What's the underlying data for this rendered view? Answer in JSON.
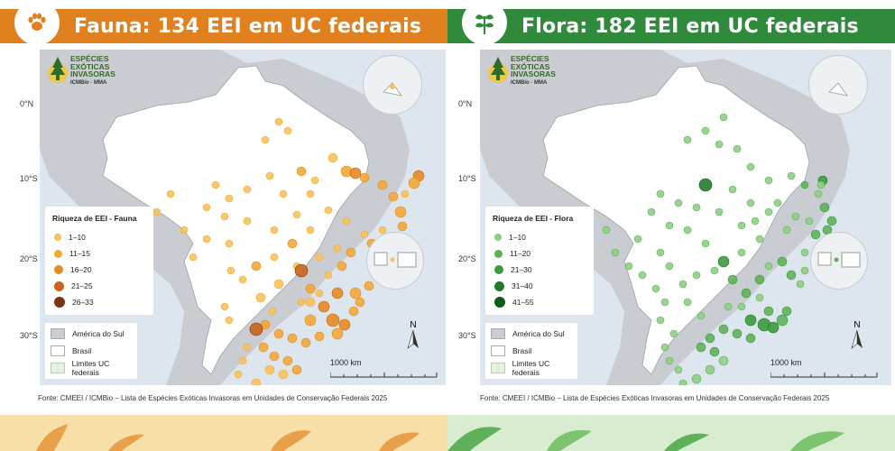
{
  "panels": [
    {
      "id": "fauna",
      "title": "Fauna: 134 EEI em UC federais",
      "icon": "paw-icon",
      "accent": "#e0801f",
      "legend_title": "Riqueza de EEI - Fauna",
      "legend": [
        {
          "label": "1–10",
          "color": "#f6c25c"
        },
        {
          "label": "11–15",
          "color": "#f2a93a"
        },
        {
          "label": "16–20",
          "color": "#e58a20"
        },
        {
          "label": "21–25",
          "color": "#c9651a"
        },
        {
          "label": "26–33",
          "color": "#7a3412"
        }
      ],
      "points": [
        [
          290,
          135,
          5,
          2
        ],
        [
          300,
          160,
          4,
          1
        ],
        [
          325,
          120,
          5,
          1
        ],
        [
          340,
          135,
          6,
          2
        ],
        [
          350,
          137,
          6,
          3
        ],
        [
          360,
          142,
          5,
          2
        ],
        [
          380,
          150,
          5,
          2
        ],
        [
          392,
          163,
          5,
          2
        ],
        [
          400,
          180,
          6,
          2
        ],
        [
          402,
          196,
          5,
          2
        ],
        [
          395,
          210,
          5,
          2
        ],
        [
          380,
          200,
          4,
          1
        ],
        [
          305,
          145,
          4,
          1
        ],
        [
          270,
          160,
          4,
          1
        ],
        [
          285,
          183,
          4,
          1
        ],
        [
          255,
          140,
          4,
          1
        ],
        [
          230,
          155,
          4,
          1
        ],
        [
          210,
          165,
          4,
          1
        ],
        [
          195,
          150,
          4,
          1
        ],
        [
          185,
          175,
          4,
          1
        ],
        [
          205,
          185,
          4,
          1
        ],
        [
          230,
          190,
          4,
          1
        ],
        [
          260,
          200,
          4,
          1
        ],
        [
          280,
          215,
          5,
          2
        ],
        [
          300,
          200,
          4,
          1
        ],
        [
          320,
          178,
          4,
          1
        ],
        [
          340,
          190,
          4,
          1
        ],
        [
          360,
          205,
          4,
          1
        ],
        [
          330,
          220,
          4,
          1
        ],
        [
          310,
          230,
          4,
          1
        ],
        [
          285,
          240,
          4,
          1
        ],
        [
          260,
          230,
          4,
          1
        ],
        [
          240,
          240,
          5,
          2
        ],
        [
          225,
          255,
          4,
          1
        ],
        [
          212,
          245,
          4,
          1
        ],
        [
          290,
          245,
          7,
          4
        ],
        [
          300,
          265,
          5,
          2
        ],
        [
          320,
          250,
          4,
          1
        ],
        [
          335,
          240,
          5,
          2
        ],
        [
          345,
          225,
          5,
          2
        ],
        [
          368,
          215,
          5,
          2
        ],
        [
          385,
          232,
          6,
          2
        ],
        [
          380,
          250,
          5,
          2
        ],
        [
          365,
          262,
          5,
          2
        ],
        [
          350,
          270,
          6,
          2
        ],
        [
          330,
          270,
          6,
          3
        ],
        [
          315,
          285,
          6,
          3
        ],
        [
          300,
          300,
          6,
          2
        ],
        [
          325,
          300,
          7,
          3
        ],
        [
          338,
          305,
          6,
          3
        ],
        [
          348,
          290,
          5,
          2
        ],
        [
          355,
          280,
          5,
          2
        ],
        [
          330,
          315,
          6,
          2
        ],
        [
          310,
          318,
          5,
          2
        ],
        [
          295,
          325,
          5,
          2
        ],
        [
          280,
          320,
          5,
          2
        ],
        [
          265,
          315,
          5,
          2
        ],
        [
          250,
          305,
          5,
          2
        ],
        [
          240,
          310,
          7,
          4
        ],
        [
          248,
          330,
          5,
          2
        ],
        [
          260,
          340,
          5,
          2
        ],
        [
          275,
          345,
          5,
          2
        ],
        [
          285,
          355,
          5,
          2
        ],
        [
          270,
          360,
          5,
          1
        ],
        [
          255,
          355,
          5,
          1
        ],
        [
          240,
          370,
          5,
          1
        ],
        [
          235,
          392,
          4,
          1
        ],
        [
          220,
          360,
          4,
          1
        ],
        [
          225,
          345,
          4,
          1
        ],
        [
          230,
          330,
          4,
          1
        ],
        [
          210,
          300,
          4,
          1
        ],
        [
          205,
          285,
          4,
          1
        ],
        [
          300,
          280,
          5,
          1
        ],
        [
          265,
          260,
          5,
          1
        ],
        [
          245,
          275,
          5,
          1
        ],
        [
          258,
          290,
          4,
          1
        ],
        [
          290,
          280,
          4,
          1
        ],
        [
          310,
          270,
          4,
          1
        ],
        [
          420,
          140,
          6,
          3
        ],
        [
          415,
          148,
          6,
          2
        ],
        [
          405,
          160,
          4,
          1
        ],
        [
          275,
          90,
          4,
          1
        ],
        [
          265,
          80,
          4,
          1
        ],
        [
          250,
          100,
          4,
          1
        ],
        [
          160,
          200,
          4,
          1
        ],
        [
          145,
          160,
          4,
          1
        ],
        [
          130,
          180,
          4,
          1
        ],
        [
          185,
          210,
          4,
          1
        ],
        [
          170,
          230,
          4,
          1
        ],
        [
          210,
          215,
          4,
          1
        ]
      ],
      "inset_top_point_color": "#f6c25c",
      "bottom_legend": [
        "América do Sul",
        "Brasil",
        "Limites UC federais"
      ],
      "lat_labels": [
        "0°N",
        "10°S",
        "20°S",
        "30°S"
      ],
      "scale_label": "1000 km",
      "north_label": "N",
      "source": "Fonte: CMEEI / ICMBio – Lista de Espécies Exóticas Invasoras em Unidades de Conservação Federais 2025"
    },
    {
      "id": "flora",
      "title": "Flora: 182 EEI em UC federais",
      "icon": "leaf-icon",
      "accent": "#2f8a3b",
      "legend_title": "Riqueza de EEI - Flora",
      "legend": [
        {
          "label": "1–10",
          "color": "#8fce85"
        },
        {
          "label": "11–20",
          "color": "#5fb159"
        },
        {
          "label": "21–30",
          "color": "#3d9a3e"
        },
        {
          "label": "31–40",
          "color": "#237a2c"
        },
        {
          "label": "41–55",
          "color": "#0f5a1d"
        }
      ],
      "points": [
        [
          250,
          150,
          7,
          4
        ],
        [
          230,
          100,
          4,
          1
        ],
        [
          250,
          90,
          4,
          1
        ],
        [
          265,
          105,
          4,
          1
        ],
        [
          300,
          130,
          4,
          1
        ],
        [
          320,
          145,
          4,
          1
        ],
        [
          345,
          140,
          4,
          1
        ],
        [
          360,
          150,
          4,
          2
        ],
        [
          375,
          160,
          4,
          1
        ],
        [
          382,
          175,
          5,
          2
        ],
        [
          390,
          190,
          5,
          2
        ],
        [
          385,
          200,
          5,
          2
        ],
        [
          372,
          205,
          5,
          2
        ],
        [
          380,
          220,
          4,
          1
        ],
        [
          360,
          225,
          4,
          1
        ],
        [
          340,
          200,
          4,
          1
        ],
        [
          320,
          180,
          4,
          1
        ],
        [
          300,
          170,
          4,
          1
        ],
        [
          280,
          155,
          4,
          1
        ],
        [
          265,
          180,
          4,
          1
        ],
        [
          240,
          175,
          4,
          1
        ],
        [
          220,
          170,
          4,
          1
        ],
        [
          200,
          160,
          4,
          1
        ],
        [
          190,
          180,
          4,
          1
        ],
        [
          210,
          195,
          4,
          1
        ],
        [
          230,
          200,
          4,
          1
        ],
        [
          250,
          215,
          4,
          1
        ],
        [
          270,
          235,
          6,
          3
        ],
        [
          280,
          255,
          5,
          2
        ],
        [
          295,
          270,
          5,
          2
        ],
        [
          310,
          255,
          5,
          2
        ],
        [
          320,
          240,
          4,
          1
        ],
        [
          335,
          235,
          5,
          2
        ],
        [
          345,
          250,
          5,
          2
        ],
        [
          355,
          260,
          4,
          1
        ],
        [
          360,
          245,
          4,
          1
        ],
        [
          320,
          290,
          5,
          2
        ],
        [
          300,
          300,
          6,
          3
        ],
        [
          315,
          305,
          7,
          3
        ],
        [
          325,
          308,
          6,
          3
        ],
        [
          335,
          300,
          6,
          2
        ],
        [
          340,
          290,
          5,
          2
        ],
        [
          300,
          320,
          5,
          2
        ],
        [
          285,
          315,
          5,
          2
        ],
        [
          270,
          310,
          5,
          2
        ],
        [
          255,
          320,
          5,
          2
        ],
        [
          245,
          330,
          5,
          2
        ],
        [
          260,
          335,
          5,
          2
        ],
        [
          270,
          345,
          5,
          1
        ],
        [
          255,
          355,
          5,
          1
        ],
        [
          240,
          365,
          5,
          1
        ],
        [
          225,
          370,
          4,
          1
        ],
        [
          220,
          355,
          4,
          1
        ],
        [
          210,
          345,
          4,
          1
        ],
        [
          205,
          330,
          4,
          1
        ],
        [
          215,
          315,
          4,
          1
        ],
        [
          200,
          300,
          4,
          1
        ],
        [
          205,
          280,
          4,
          1
        ],
        [
          195,
          265,
          4,
          1
        ],
        [
          180,
          250,
          4,
          1
        ],
        [
          165,
          240,
          4,
          1
        ],
        [
          150,
          225,
          4,
          1
        ],
        [
          140,
          200,
          4,
          1
        ],
        [
          175,
          210,
          4,
          1
        ],
        [
          230,
          280,
          4,
          1
        ],
        [
          245,
          295,
          4,
          1
        ],
        [
          275,
          285,
          4,
          1
        ],
        [
          290,
          285,
          4,
          1
        ],
        [
          310,
          275,
          4,
          1
        ],
        [
          380,
          145,
          5,
          3
        ],
        [
          378,
          150,
          4,
          1
        ],
        [
          330,
          170,
          4,
          1
        ],
        [
          350,
          185,
          4,
          1
        ],
        [
          365,
          190,
          4,
          1
        ],
        [
          310,
          210,
          4,
          1
        ],
        [
          290,
          225,
          4,
          1
        ],
        [
          260,
          245,
          4,
          1
        ],
        [
          240,
          250,
          4,
          1
        ],
        [
          225,
          260,
          4,
          1
        ],
        [
          210,
          240,
          4,
          1
        ],
        [
          200,
          225,
          4,
          1
        ],
        [
          290,
          195,
          4,
          1
        ],
        [
          305,
          190,
          4,
          1
        ],
        [
          285,
          110,
          4,
          1
        ],
        [
          270,
          75,
          4,
          1
        ]
      ],
      "inset_top_point_color": "#5fb159",
      "bottom_legend": [
        "América do Sul",
        "Brasil",
        "Limites UC federais"
      ],
      "lat_labels": [
        "0°N",
        "10°S",
        "20°S",
        "30°S"
      ],
      "scale_label": "1000 km",
      "north_label": "N",
      "source": "Fonte: CMEEI / ICMBio – Lista de Espécies Exóticas Invasoras em Unidades de Conservação Federais 2025"
    }
  ],
  "logo": {
    "line1": "ESPÉCIES",
    "line2": "EXÓTICAS",
    "line3": "INVASORAS",
    "sub": "ICMBio · MMA"
  }
}
